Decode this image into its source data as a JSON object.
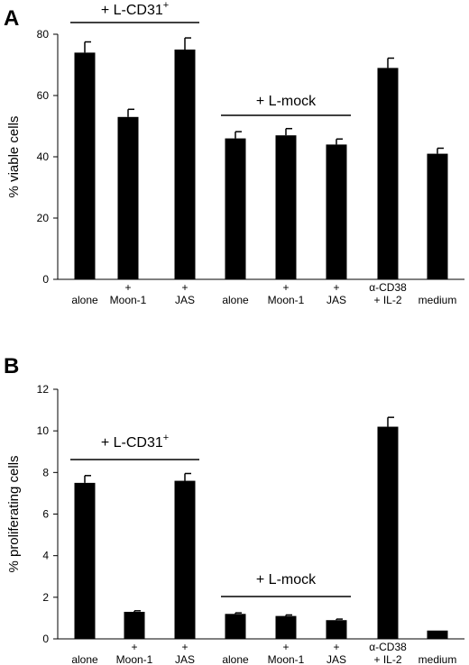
{
  "chart_data": [
    {
      "type": "bar",
      "panel_label": "A",
      "ylabel": "% viable cells",
      "ylim": [
        0,
        80
      ],
      "yticks": [
        "0",
        "20",
        "40",
        "60",
        "80"
      ],
      "categories": [
        {
          "line1": "alone",
          "line2": ""
        },
        {
          "line1": "+",
          "line2": "Moon-1"
        },
        {
          "line1": "+",
          "line2": "JAS"
        },
        {
          "line1": "alone",
          "line2": ""
        },
        {
          "line1": "+",
          "line2": "Moon-1"
        },
        {
          "line1": "+",
          "line2": "JAS"
        },
        {
          "line1": "α-CD38",
          "line2": "+ IL-2"
        },
        {
          "line1": "medium",
          "line2": ""
        }
      ],
      "values": [
        74,
        53,
        75,
        46,
        47,
        44,
        69,
        41
      ],
      "errors": [
        3.5,
        2.5,
        3.8,
        2.2,
        2.2,
        1.8,
        3.2,
        1.8
      ],
      "groups": [
        {
          "label": "+ L-CD31",
          "superscript": "+",
          "from": 0,
          "to": 2
        },
        {
          "label": "+ L-mock",
          "superscript": "",
          "from": 3,
          "to": 5
        }
      ]
    },
    {
      "type": "bar",
      "panel_label": "B",
      "ylabel": "% proliferating cells",
      "ylim": [
        0,
        12
      ],
      "yticks": [
        "0",
        "2",
        "4",
        "6",
        "8",
        "10",
        "12"
      ],
      "categories": [
        {
          "line1": "alone",
          "line2": ""
        },
        {
          "line1": "+",
          "line2": "Moon-1"
        },
        {
          "line1": "+",
          "line2": "JAS"
        },
        {
          "line1": "alone",
          "line2": ""
        },
        {
          "line1": "+",
          "line2": "Moon-1"
        },
        {
          "line1": "+",
          "line2": "JAS"
        },
        {
          "line1": "α-CD38",
          "line2": "+ IL-2"
        },
        {
          "line1": "medium",
          "line2": ""
        }
      ],
      "values": [
        7.5,
        1.3,
        7.6,
        1.2,
        1.1,
        0.9,
        10.2,
        0.4
      ],
      "errors": [
        0.35,
        0.05,
        0.35,
        0.05,
        0.05,
        0.05,
        0.45,
        0.0
      ],
      "groups": [
        {
          "label": "+ L-CD31",
          "superscript": "+",
          "from": 0,
          "to": 2
        },
        {
          "label": "+ L-mock",
          "superscript": "",
          "from": 3,
          "to": 5
        }
      ]
    }
  ]
}
